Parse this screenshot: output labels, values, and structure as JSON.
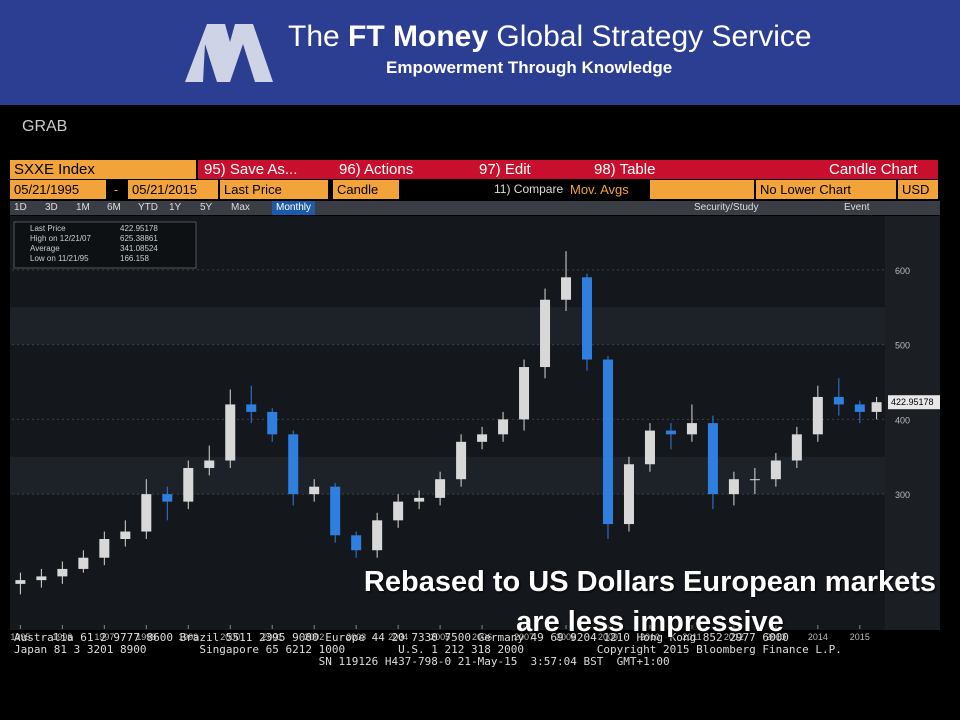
{
  "header": {
    "title_prefix": "The",
    "title_bold": "FT Money",
    "title_rest": "Global Strategy Service",
    "tagline": "Empowerment Through Knowledge"
  },
  "grab": "GRAB",
  "toolbar": {
    "security": "SXXE Index",
    "buttons": [
      "95) Save As...",
      "96) Actions",
      "97) Edit",
      "98) Table"
    ],
    "chart_kind": "Candle Chart",
    "start_date": "05/21/1995",
    "date_separator": "-",
    "end_date": "05/21/2015",
    "field": "Last Price",
    "style": "Candle",
    "compare": "11) Compare",
    "mov_avgs": "Mov. Avgs",
    "lower": "No Lower Chart",
    "currency": "USD",
    "ranges": [
      "1D",
      "3D",
      "1M",
      "6M",
      "YTD",
      "1Y",
      "5Y",
      "Max"
    ],
    "period": "Monthly",
    "security_study": "Security/Study",
    "event": "Event"
  },
  "chart_data": {
    "type": "candlestick",
    "up_color": "#d8d8d8",
    "down_color": "#2f7fe0",
    "grid": true,
    "x": [
      1995,
      1995.5,
      1996,
      1996.5,
      1997,
      1997.5,
      1998,
      1998.5,
      1999,
      1999.5,
      2000,
      2000.5,
      2001,
      2001.5,
      2002,
      2002.5,
      2003,
      2003.5,
      2004,
      2004.5,
      2005,
      2005.5,
      2006,
      2006.5,
      2007,
      2007.5,
      2008,
      2008.5,
      2009,
      2009.5,
      2010,
      2010.5,
      2011,
      2011.5,
      2012,
      2012.5,
      2013,
      2013.5,
      2014,
      2014.5,
      2015,
      2015.4
    ],
    "open": [
      180,
      185,
      190,
      200,
      215,
      240,
      250,
      300,
      290,
      335,
      345,
      420,
      410,
      380,
      300,
      310,
      245,
      225,
      265,
      290,
      295,
      320,
      370,
      380,
      400,
      470,
      560,
      590,
      480,
      260,
      340,
      385,
      380,
      395,
      300,
      320,
      320,
      345,
      380,
      430,
      420,
      410
    ],
    "high": [
      195,
      200,
      210,
      225,
      250,
      265,
      320,
      310,
      345,
      365,
      440,
      445,
      415,
      385,
      320,
      315,
      250,
      275,
      300,
      305,
      330,
      380,
      390,
      410,
      480,
      575,
      625,
      595,
      485,
      350,
      395,
      395,
      420,
      405,
      330,
      335,
      355,
      390,
      445,
      455,
      425,
      430
    ],
    "low": [
      166,
      175,
      180,
      195,
      205,
      230,
      240,
      265,
      280,
      325,
      335,
      395,
      370,
      285,
      290,
      235,
      215,
      215,
      255,
      280,
      285,
      310,
      360,
      370,
      385,
      455,
      545,
      465,
      240,
      250,
      330,
      360,
      370,
      280,
      285,
      300,
      310,
      335,
      370,
      405,
      395,
      400
    ],
    "close": [
      185,
      190,
      200,
      215,
      240,
      250,
      300,
      290,
      335,
      345,
      420,
      410,
      380,
      300,
      310,
      245,
      225,
      265,
      290,
      295,
      320,
      370,
      380,
      400,
      470,
      560,
      590,
      480,
      260,
      340,
      385,
      380,
      395,
      300,
      320,
      320,
      345,
      380,
      430,
      420,
      410,
      423
    ],
    "xlim": [
      1994.8,
      2015.6
    ],
    "xticks": [
      1995,
      1996,
      1997,
      1998,
      1999,
      2000,
      2001,
      2002,
      2003,
      2004,
      2005,
      2006,
      2007,
      2008,
      2009,
      2010,
      2011,
      2012,
      2013,
      2014,
      2015
    ],
    "ylim": [
      125,
      672
    ],
    "yticks": [
      300,
      400,
      500,
      600
    ],
    "legend": [
      {
        "label": "Last Price",
        "value": 422.95178
      },
      {
        "label": "High on 12/21/07",
        "value": 625.38861
      },
      {
        "label": "Average",
        "value": 341.08524
      },
      {
        "label": "Low on 11/21/95",
        "value": 166.158
      }
    ]
  },
  "caption": "Rebased to US Dollars European markets are less impressive",
  "footer": [
    "Australia 61 2 9777 8600 Brazil 5511 2395 9000 Europe 44 20 7330 7500 Germany 49 69 9204 1210 Hong Kong 852 2977 6000",
    "Japan 81 3 3201 8900        Singapore 65 6212 1000        U.S. 1 212 318 2000           Copyright 2015 Bloomberg Finance L.P.",
    "                                              SN 119126 H437-798-0 21-May-15  3:57:04 BST  GMT+1:00"
  ]
}
